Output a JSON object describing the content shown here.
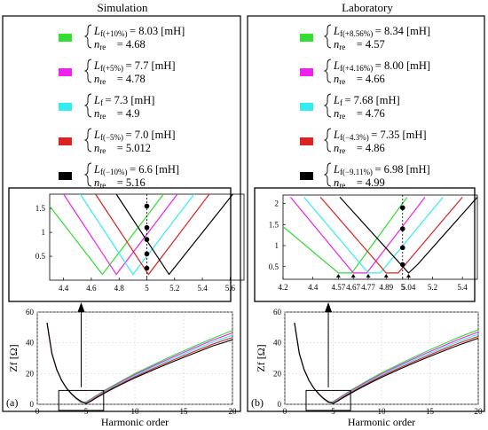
{
  "panels": [
    {
      "id": "a",
      "title": "Simulation",
      "letter": "(a)",
      "legend": [
        {
          "color": "#33dd33",
          "sub": "f(+10%)",
          "L": "8.03",
          "unit": "[mH]",
          "n": "4.68"
        },
        {
          "color": "#ee22ee",
          "sub": "f(+5%)",
          "L": "7.7",
          "unit": "[mH]",
          "n": "4.78"
        },
        {
          "color": "#33eeee",
          "sub": "f",
          "L": "7.3",
          "unit": "[mH]",
          "n": "4.9"
        },
        {
          "color": "#dd2222",
          "sub": "f(−5%)",
          "L": "7.0",
          "unit": "[mH]",
          "n": "5.012"
        },
        {
          "color": "#000000",
          "sub": "f(−10%)",
          "L": "6.6",
          "unit": "[mH]",
          "n": "5.16"
        }
      ]
    },
    {
      "id": "b",
      "title": "Laboratory",
      "letter": "(b)",
      "legend": [
        {
          "color": "#33dd33",
          "sub": "f(+8.56%)",
          "L": "8.34",
          "unit": "[mH]",
          "n": "4.57"
        },
        {
          "color": "#ee22ee",
          "sub": "f(+4.16%)",
          "L": "8.00",
          "unit": "[mH]",
          "n": "4.66"
        },
        {
          "color": "#33eeee",
          "sub": "f",
          "L": "7.68",
          "unit": "[mH]",
          "n": "4.76"
        },
        {
          "color": "#dd2222",
          "sub": "f(−4.3%)",
          "L": "7.35",
          "unit": "[mH]",
          "n": "4.86"
        },
        {
          "color": "#000000",
          "sub": "f(−9.11%)",
          "L": "6.98",
          "unit": "[mH]",
          "n": "4.99"
        }
      ]
    }
  ],
  "chart_data": [
    {
      "panel": "a",
      "role": "zoom",
      "type": "line",
      "xlim": [
        4.3,
        5.7
      ],
      "ylim": [
        0,
        1.8
      ],
      "xticks": [
        4.4,
        4.6,
        4.8,
        5,
        5.2,
        5.4,
        5.6
      ],
      "yticks": [
        0.5,
        1,
        1.5
      ],
      "series": [
        {
          "color": "#33dd33",
          "x": [
            4.3,
            4.68,
            5.12
          ],
          "y": [
            1.55,
            0.12,
            1.8
          ]
        },
        {
          "color": "#ee22ee",
          "x": [
            4.4,
            4.78,
            5.22
          ],
          "y": [
            1.8,
            0.12,
            1.8
          ]
        },
        {
          "color": "#33eeee",
          "x": [
            4.52,
            4.9,
            5.34
          ],
          "y": [
            1.8,
            0.12,
            1.8
          ]
        },
        {
          "color": "#dd2222",
          "x": [
            4.63,
            5.012,
            5.45
          ],
          "y": [
            1.8,
            0.12,
            1.8
          ]
        },
        {
          "color": "#000000",
          "x": [
            4.78,
            5.16,
            5.62
          ],
          "y": [
            1.8,
            0.12,
            1.8
          ]
        }
      ],
      "markers": {
        "x": 5,
        "y": [
          0.25,
          0.55,
          0.85,
          1.1,
          1.55
        ]
      }
    },
    {
      "panel": "a",
      "role": "main",
      "type": "line",
      "xlabel": "Harmonic order",
      "ylabel": "Zf [Ω]",
      "xlim": [
        0,
        20
      ],
      "ylim": [
        0,
        60
      ],
      "xticks": [
        0,
        5,
        10,
        15,
        20
      ],
      "yticks": [
        0,
        20,
        40,
        60
      ],
      "x": [
        1,
        1.5,
        2,
        2.5,
        3,
        3.5,
        4,
        4.5,
        5,
        5.5,
        6,
        7,
        8,
        9,
        10,
        12,
        14,
        16,
        18,
        20
      ],
      "series": [
        {
          "color": "#33dd33",
          "y": [
            53,
            33,
            22.5,
            15.5,
            10.5,
            6.5,
            3.5,
            1,
            1.5,
            3.5,
            5.5,
            9.5,
            13,
            16.5,
            20,
            26,
            32,
            37.5,
            43,
            48
          ]
        },
        {
          "color": "#ee22ee",
          "y": [
            53,
            33,
            22.5,
            15.5,
            10.5,
            6.6,
            3.6,
            1.2,
            1.2,
            3.2,
            5.2,
            9,
            12.5,
            16,
            19.3,
            25.3,
            31,
            36.5,
            41.8,
            46.5
          ]
        },
        {
          "color": "#33eeee",
          "y": [
            53,
            33,
            22.5,
            15.5,
            10.5,
            6.7,
            3.7,
            1.5,
            0.8,
            2.8,
            4.8,
            8.6,
            12,
            15.3,
            18.6,
            24.5,
            30,
            35.4,
            40.5,
            45
          ]
        },
        {
          "color": "#dd2222",
          "y": [
            53,
            33,
            22.5,
            15.5,
            10.5,
            6.8,
            3.9,
            1.7,
            0.5,
            2.4,
            4.4,
            8.1,
            11.5,
            14.7,
            17.9,
            23.6,
            29,
            34.2,
            39.2,
            43.5
          ]
        },
        {
          "color": "#000000",
          "y": [
            53,
            33,
            22.5,
            15.5,
            10.5,
            6.9,
            4,
            1.9,
            0.4,
            2,
            4,
            7.6,
            11,
            14.1,
            17.2,
            22.7,
            28,
            33,
            38,
            42
          ]
        }
      ]
    },
    {
      "panel": "b",
      "role": "zoom",
      "type": "line",
      "xlim": [
        4.2,
        5.5
      ],
      "ylim": [
        0.2,
        2.2
      ],
      "xticks": [
        4.2,
        4.4,
        4.57,
        4.67,
        4.77,
        4.89,
        5,
        5.04,
        5.2,
        5.4
      ],
      "xticklabels": [
        "4.2",
        "4.4",
        "4.57",
        "4.67",
        "4.77",
        "4.89",
        "5",
        "5.04",
        "5.2",
        "5.4"
      ],
      "yticks": [
        0.5,
        1,
        1.5,
        2
      ],
      "series": [
        {
          "color": "#33dd33",
          "x": [
            4.2,
            4.57,
            4.66,
            5.03
          ],
          "y": [
            1.45,
            0.35,
            0.35,
            2.15
          ]
        },
        {
          "color": "#ee22ee",
          "x": [
            4.25,
            4.67,
            4.76,
            5.15
          ],
          "y": [
            2.15,
            0.35,
            0.35,
            2.15
          ]
        },
        {
          "color": "#33eeee",
          "x": [
            4.34,
            4.77,
            4.85,
            5.27
          ],
          "y": [
            2.15,
            0.35,
            0.35,
            2.15
          ]
        },
        {
          "color": "#dd2222",
          "x": [
            4.45,
            4.89,
            4.97,
            5.4
          ],
          "y": [
            2.15,
            0.35,
            0.35,
            2.15
          ]
        },
        {
          "color": "#000000",
          "x": [
            4.58,
            5.04,
            5.1,
            5.5
          ],
          "y": [
            2.15,
            0.35,
            0.55,
            2.15
          ]
        }
      ],
      "markers": {
        "x": 5,
        "y": [
          0.55,
          0.95,
          1.4,
          1.9
        ]
      },
      "triangles": [
        4.57,
        4.67,
        4.77,
        4.89,
        5.04
      ]
    },
    {
      "panel": "b",
      "role": "main",
      "type": "line",
      "xlabel": "Harmonic order",
      "ylabel": "Zf [Ω]",
      "xlim": [
        0,
        20
      ],
      "ylim": [
        0,
        60
      ],
      "xticks": [
        0,
        5,
        10,
        15,
        20
      ],
      "yticks": [
        0,
        20,
        40,
        60
      ],
      "x": [
        1,
        1.5,
        2,
        2.5,
        3,
        3.5,
        4,
        4.5,
        5,
        5.5,
        6,
        7,
        8,
        9,
        10,
        12,
        14,
        16,
        18,
        20
      ],
      "series": [
        {
          "color": "#33dd33",
          "y": [
            53,
            33,
            22.5,
            15.5,
            10.5,
            6.5,
            3.4,
            0.9,
            1.8,
            3.8,
            5.8,
            9.8,
            13.4,
            17,
            20.5,
            26.6,
            32.6,
            38.2,
            43.6,
            48.5
          ]
        },
        {
          "color": "#ee22ee",
          "y": [
            53,
            33,
            22.5,
            15.5,
            10.5,
            6.6,
            3.5,
            1.1,
            1.4,
            3.4,
            5.4,
            9.3,
            12.9,
            16.4,
            19.8,
            25.8,
            31.6,
            37,
            42.3,
            47
          ]
        },
        {
          "color": "#33eeee",
          "y": [
            53,
            33,
            22.5,
            15.5,
            10.5,
            6.7,
            3.6,
            1.3,
            1,
            3,
            5,
            8.8,
            12.3,
            15.7,
            19,
            25,
            30.6,
            35.9,
            41,
            45.6
          ]
        },
        {
          "color": "#dd2222",
          "y": [
            53,
            33,
            22.5,
            15.5,
            10.5,
            6.8,
            3.8,
            1.5,
            0.7,
            2.6,
            4.6,
            8.3,
            11.8,
            15.1,
            18.3,
            24.1,
            29.6,
            34.8,
            39.8,
            44.2
          ]
        },
        {
          "color": "#000000",
          "y": [
            53,
            33,
            22.5,
            15.5,
            10.5,
            6.9,
            3.9,
            1.7,
            0.5,
            2.2,
            4.2,
            7.8,
            11.2,
            14.4,
            17.5,
            23.2,
            28.6,
            33.7,
            38.6,
            43
          ]
        }
      ]
    }
  ]
}
